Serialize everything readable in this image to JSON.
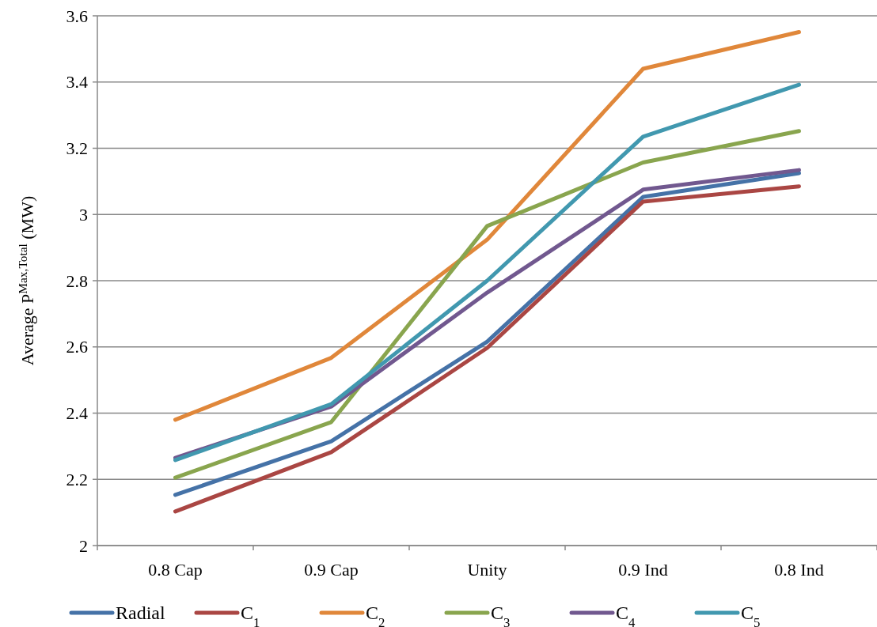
{
  "chart_data": {
    "type": "line",
    "ylabel": "Average P$^{Max,Total}$ (MW)",
    "categories": [
      "0.8 Cap",
      "0.9 Cap",
      "Unity",
      "0.9 Ind",
      "0.8 Ind"
    ],
    "ylim": [
      2,
      3.6
    ],
    "yticks": [
      2,
      2.2,
      2.4,
      2.6,
      2.8,
      3,
      3.2,
      3.4,
      3.6
    ],
    "grid": "y",
    "legend": "bottom",
    "marker": "none",
    "line_style": "solid",
    "series": [
      {
        "name": "Radial",
        "color": "#4572a7",
        "values": [
          2.153,
          2.315,
          2.616,
          3.053,
          3.125
        ]
      },
      {
        "name": "C$_{1}$",
        "color": "#aa4643",
        "values": [
          2.103,
          2.282,
          2.597,
          3.039,
          3.085
        ]
      },
      {
        "name": "C$_{2}$",
        "color": "#e0873a",
        "values": [
          2.38,
          2.567,
          2.924,
          3.44,
          3.551
        ]
      },
      {
        "name": "C$_{3}$",
        "color": "#89a54e",
        "values": [
          2.205,
          2.373,
          2.965,
          3.157,
          3.252
        ]
      },
      {
        "name": "C$_{4}$",
        "color": "#71588f",
        "values": [
          2.265,
          2.42,
          2.764,
          3.075,
          3.134
        ]
      },
      {
        "name": "C$_{5}$",
        "color": "#4198af",
        "values": [
          2.258,
          2.427,
          2.8,
          3.235,
          3.392
        ]
      }
    ]
  }
}
